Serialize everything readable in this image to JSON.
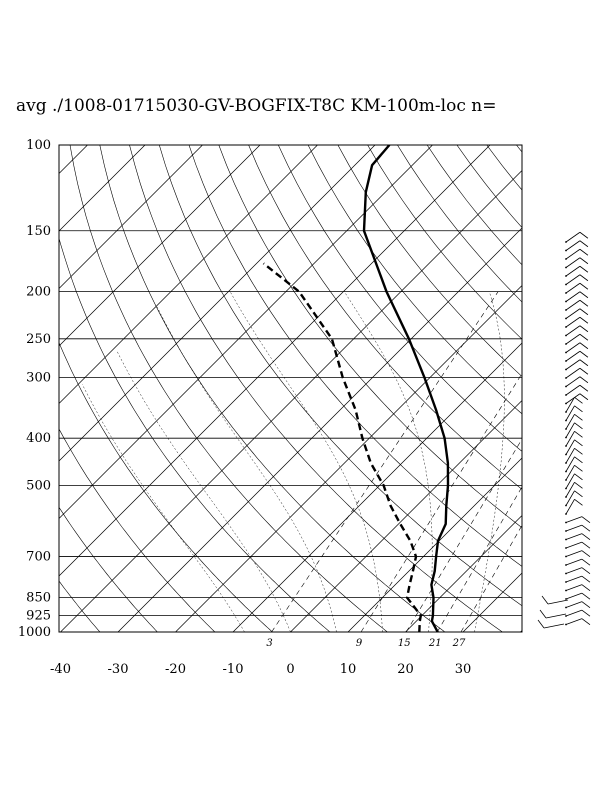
{
  "title": "avg ./1008-01715030-GV-BOGFIX-T8C KM-100m-loc n=",
  "chart_data": {
    "type": "line",
    "subtype": "skew-T log-P diagram",
    "title": "avg ./1008-01715030-GV-BOGFIX-T8C KM-100m-loc n=",
    "xlabel": "",
    "ylabel": "",
    "x_ticks": [
      "-40",
      "-30",
      "-20",
      "-10",
      "0",
      "10",
      "20",
      "30"
    ],
    "x_tick_values": [
      -40,
      -30,
      -20,
      -10,
      0,
      10,
      20,
      30
    ],
    "xlim": [
      -40,
      40
    ],
    "y_scale": "log",
    "y_inverted": true,
    "y_ticks": [
      "100",
      "150",
      "200",
      "250",
      "300",
      "400",
      "500",
      "700",
      "850",
      "925",
      "1000"
    ],
    "y_tick_values": [
      100,
      150,
      200,
      250,
      300,
      400,
      500,
      700,
      850,
      925,
      1000
    ],
    "ylim": [
      1000,
      100
    ],
    "mixing_ratio_labels": [
      "3",
      "9",
      "15",
      "21",
      "27"
    ],
    "grid": true,
    "series": [
      {
        "style": "solid",
        "points": [
          {
            "p": 1000,
            "t": 25.6
          },
          {
            "p": 950,
            "t": 22.7
          },
          {
            "p": 925,
            "t": 21.9
          },
          {
            "p": 850,
            "t": 18.9
          },
          {
            "p": 800,
            "t": 16.3
          },
          {
            "p": 750,
            "t": 14.5
          },
          {
            "p": 700,
            "t": 12.2
          },
          {
            "p": 650,
            "t": 9.8
          },
          {
            "p": 600,
            "t": 8.2
          },
          {
            "p": 550,
            "t": 5.1
          },
          {
            "p": 500,
            "t": 1.9
          },
          {
            "p": 450,
            "t": -2.0
          },
          {
            "p": 400,
            "t": -6.9
          },
          {
            "p": 350,
            "t": -13.3
          },
          {
            "p": 300,
            "t": -21.0
          },
          {
            "p": 250,
            "t": -30.4
          },
          {
            "p": 200,
            "t": -42.5
          },
          {
            "p": 150,
            "t": -57.0
          },
          {
            "p": 125,
            "t": -63.4
          },
          {
            "p": 110,
            "t": -67.0
          },
          {
            "p": 100,
            "t": -67.5
          }
        ]
      },
      {
        "style": "dashed",
        "points": [
          {
            "p": 1000,
            "t": 22.4
          },
          {
            "p": 950,
            "t": 20.6
          },
          {
            "p": 925,
            "t": 19.8
          },
          {
            "p": 850,
            "t": 14.3
          },
          {
            "p": 800,
            "t": 12.5
          },
          {
            "p": 750,
            "t": 10.7
          },
          {
            "p": 700,
            "t": 8.7
          },
          {
            "p": 650,
            "t": 5.0
          },
          {
            "p": 600,
            "t": 0.3
          },
          {
            "p": 550,
            "t": -4.6
          },
          {
            "p": 500,
            "t": -9.3
          },
          {
            "p": 450,
            "t": -15.4
          },
          {
            "p": 400,
            "t": -21.2
          },
          {
            "p": 350,
            "t": -27.3
          },
          {
            "p": 300,
            "t": -35.2
          },
          {
            "p": 250,
            "t": -43.8
          },
          {
            "p": 200,
            "t": -57.7
          },
          {
            "p": 175,
            "t": -68.8
          }
        ]
      }
    ],
    "wind_barbs": true,
    "colors": {
      "line": "#000000",
      "background": "#ffffff"
    }
  }
}
